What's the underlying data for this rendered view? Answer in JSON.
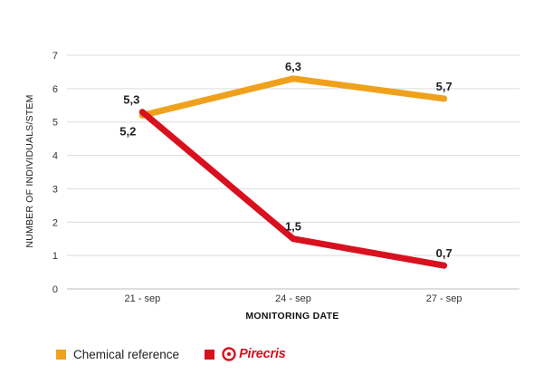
{
  "chart_data": {
    "type": "line",
    "categories": [
      "21 - sep",
      "24 - sep",
      "27 - sep"
    ],
    "series": [
      {
        "name": "Chemical reference",
        "color": "#f0a11c",
        "values": [
          5.2,
          6.3,
          5.7
        ],
        "labels": [
          "5,2",
          "6,3",
          "5,7"
        ]
      },
      {
        "name": "Pirecris",
        "color": "#d9101e",
        "values": [
          5.3,
          1.5,
          0.7
        ],
        "labels": [
          "5,3",
          "1,5",
          "0,7"
        ]
      }
    ],
    "ylim": [
      0,
      7
    ],
    "yticks": [
      "0",
      "1",
      "2",
      "3",
      "4",
      "5",
      "6",
      "7"
    ],
    "xlabel": "MONITORING DATE",
    "ylabel": "NUMBER OF INDIVIDUALS/STEM",
    "grid": true,
    "legend_position": "bottom-left"
  },
  "legend": {
    "chemical_label": "Chemical reference",
    "brand_label": "Pirecris"
  }
}
